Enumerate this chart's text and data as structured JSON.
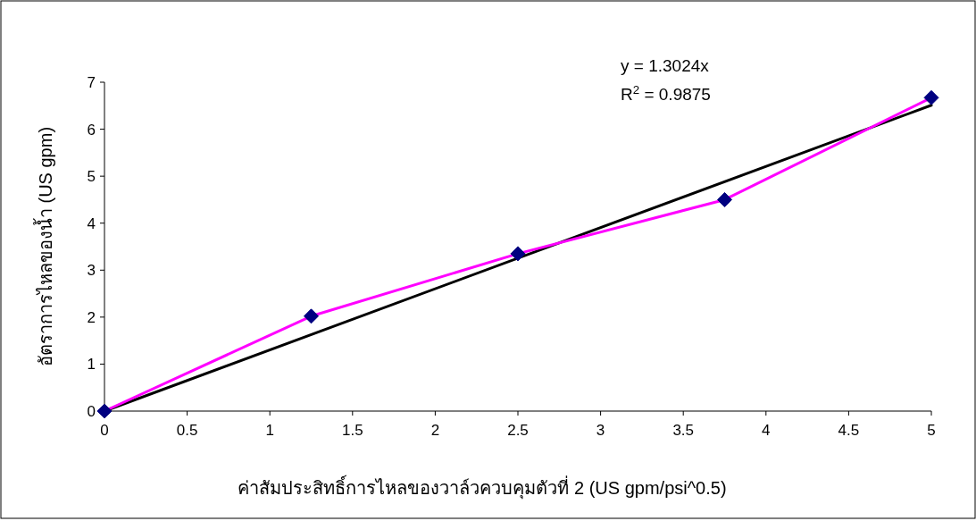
{
  "chart_data": {
    "type": "line",
    "xlabel": "ค่าสัมประสิทธิ์การไหลของวาล์วควบคุมตัวที่ 2 (US gpm/psi^0.5)",
    "ylabel": "อัตราการไหลของน้ำ (US gpm)",
    "x": [
      0,
      1.25,
      2.5,
      3.75,
      5
    ],
    "series": [
      {
        "color": "#ff00ff",
        "marker": "diamond",
        "values": [
          0,
          2.02,
          3.35,
          4.5,
          6.67
        ]
      },
      {
        "color": "#000000",
        "marker": "none",
        "x": [
          0,
          5
        ],
        "values": [
          0,
          6.51
        ]
      }
    ],
    "annotations": [
      "y = 1.3024x",
      "R$^{2}$ = 0.9875"
    ],
    "xlim": [
      0,
      5
    ],
    "xticks": [
      0,
      0.5,
      1,
      1.5,
      2,
      2.5,
      3,
      3.5,
      4,
      4.5,
      5
    ],
    "ylim": [
      0,
      7
    ],
    "yticks": [
      0,
      1,
      2,
      3,
      4,
      5,
      6,
      7
    ],
    "grid": false
  }
}
